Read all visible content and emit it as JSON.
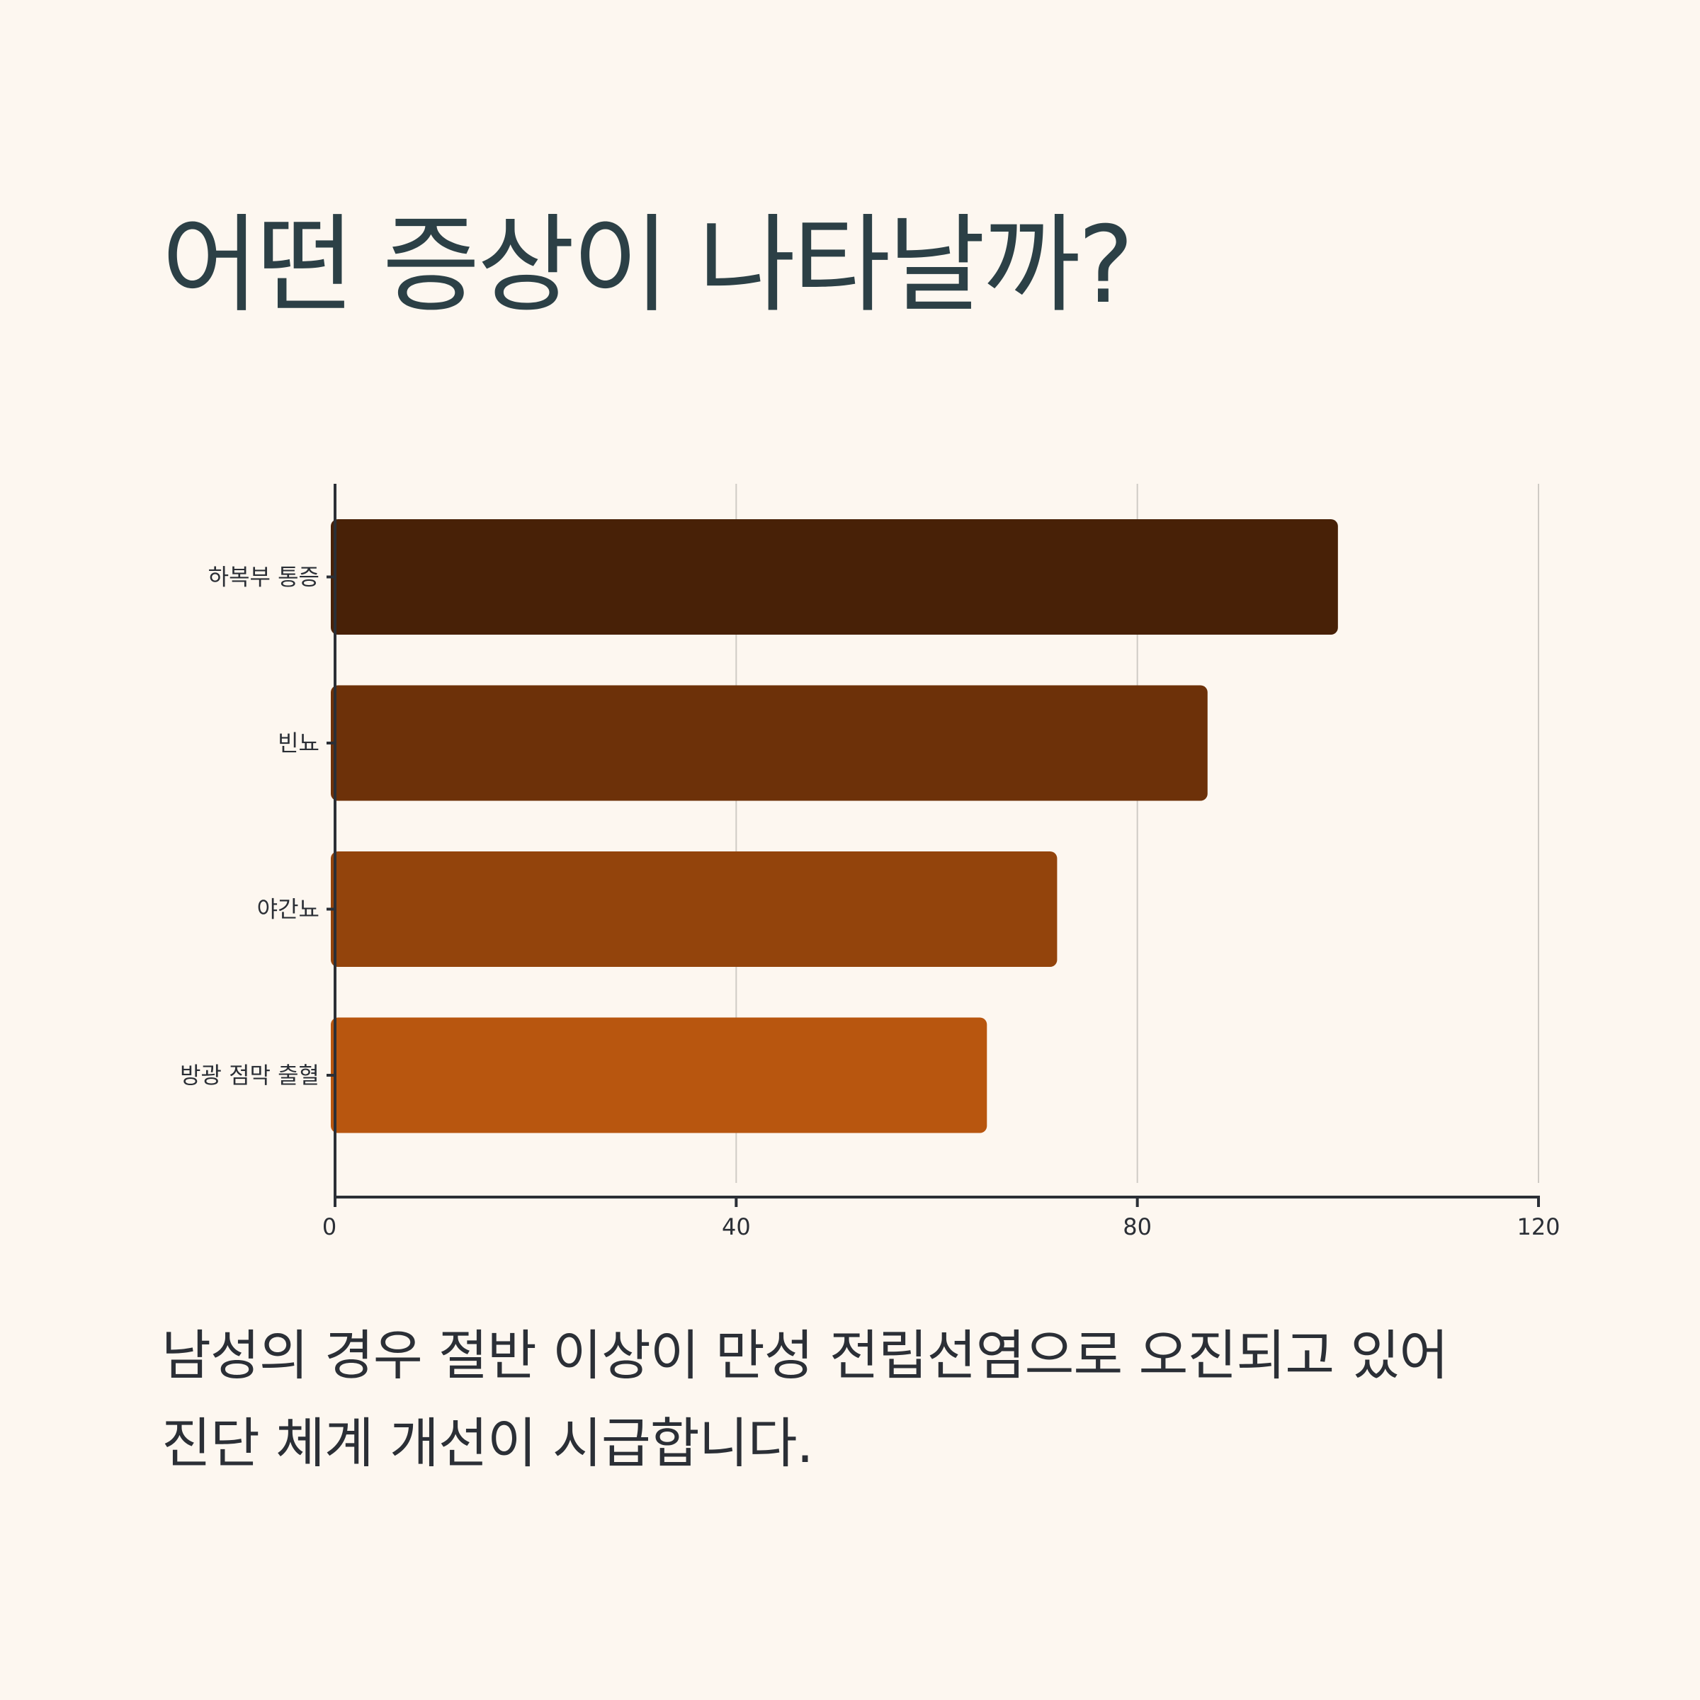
{
  "title": "어떤 증상이 나타날까?",
  "caption": {
    "line1": "남성의 경우 절반 이상이 만성 전립선염으로 오진되고 있어",
    "line2": "진단 체계 개선이 시급합니다."
  },
  "colors": {
    "background": "#fdf7f0",
    "title": "#2c4046",
    "axis": "#2b2f36",
    "grid": "#cfcbc5"
  },
  "chart_data": {
    "type": "bar",
    "orientation": "horizontal",
    "categories": [
      "하복부 통증",
      "빈뇨",
      "야간뇨",
      "방광 점막 출혈"
    ],
    "values": [
      100,
      87,
      72,
      65
    ],
    "colors": [
      "#482107",
      "#6d3109",
      "#93440c",
      "#b8560f"
    ],
    "xlim": [
      0,
      120
    ],
    "xticks": [
      0,
      40,
      80,
      120
    ],
    "grid": "vertical",
    "xlabel": "",
    "ylabel": ""
  }
}
